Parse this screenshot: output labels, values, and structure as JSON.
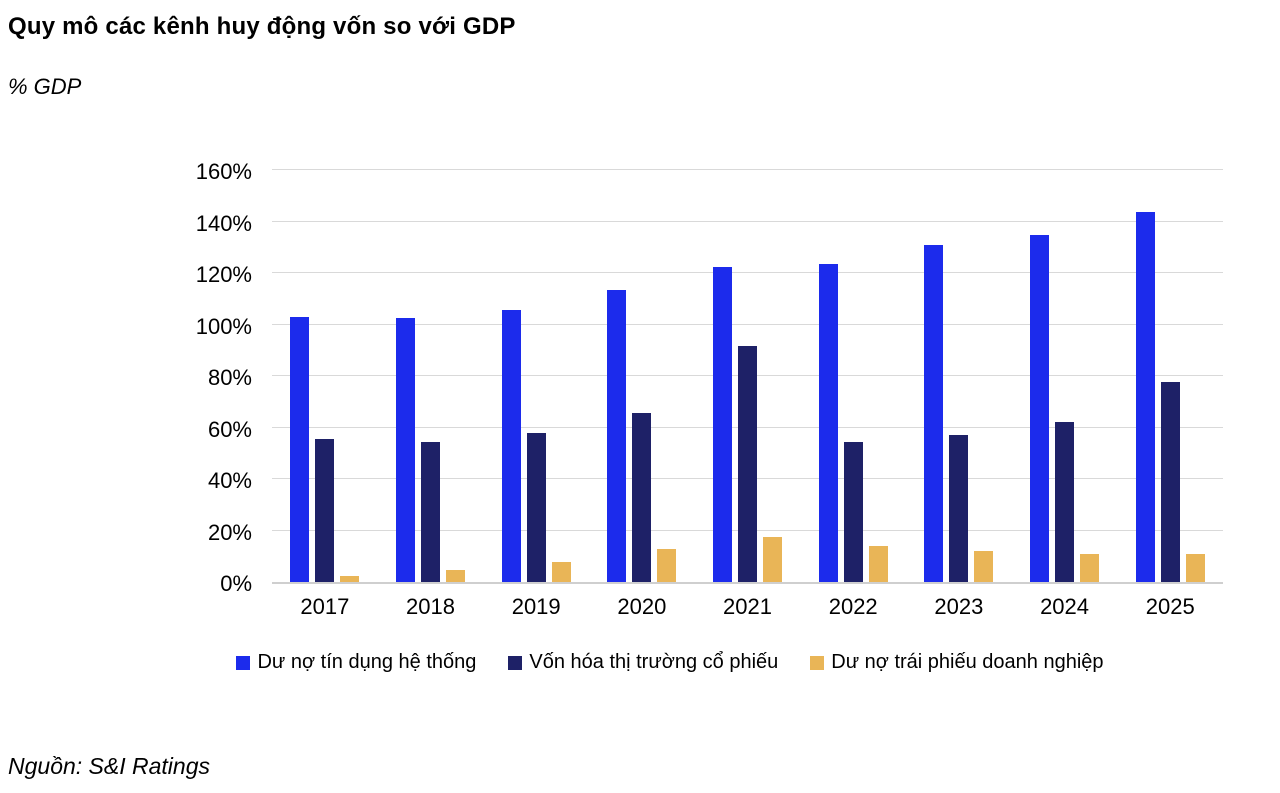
{
  "header": {
    "title": "Quy mô các kênh huy động vốn so với GDP",
    "unit_label": "% GDP"
  },
  "source": {
    "text": "Nguồn: S&I Ratings"
  },
  "chart_data": {
    "type": "bar",
    "categories": [
      "2017",
      "2018",
      "2019",
      "2020",
      "2021",
      "2022",
      "2023",
      "2024",
      "2025"
    ],
    "series": [
      {
        "name": "Dư nợ tín dụng hệ thống",
        "color": "#1c2bec",
        "values": [
          103.5,
          103,
          106,
          114,
          123,
          124,
          131.5,
          135.5,
          144.5
        ]
      },
      {
        "name": "Vốn hóa thị trường cổ phiếu",
        "color": "#1e2167",
        "values": [
          56,
          54.5,
          58,
          66,
          92,
          54.5,
          57.5,
          62.5,
          78
        ]
      },
      {
        "name": "Dư nợ trái phiếu doanh nghiệp",
        "color": "#e9b557",
        "values": [
          2.5,
          4.5,
          8,
          13,
          17.5,
          14,
          12,
          11,
          11
        ]
      }
    ],
    "title": "Quy mô các kênh huy động vốn so với GDP",
    "xlabel": "",
    "ylabel": "% GDP",
    "ylim": [
      0,
      160
    ],
    "ytick_step": 20,
    "ytick_suffix": "%",
    "grid": true,
    "legend_position": "bottom"
  },
  "colors": {
    "grid": "#d9d9d9",
    "axis": "#cfcfcf",
    "text": "#000000",
    "background": "#ffffff"
  }
}
